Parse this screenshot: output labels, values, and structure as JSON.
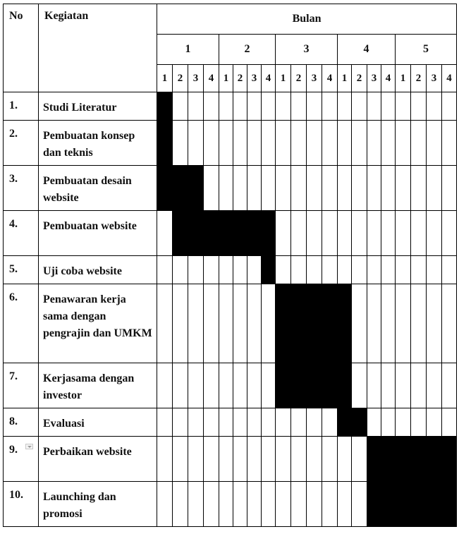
{
  "header": {
    "no_label": "No",
    "activity_label": "Kegiatan",
    "month_group_label": "Bulan",
    "months": [
      "1",
      "2",
      "3",
      "4",
      "5"
    ],
    "weeks": [
      "1",
      "2",
      "3",
      "4"
    ]
  },
  "rows": [
    {
      "no": "1.",
      "activity": "Studi Literatur",
      "weeks_active": [
        1
      ]
    },
    {
      "no": "2.",
      "activity": "Pembuatan konsep dan teknis",
      "weeks_active": [
        1
      ]
    },
    {
      "no": "3.",
      "activity": "Pembuatan desain website",
      "weeks_active": [
        1,
        2,
        3
      ]
    },
    {
      "no": "4.",
      "activity": "Pembuatan website",
      "weeks_active": [
        2,
        3,
        4,
        5,
        6,
        7,
        8
      ]
    },
    {
      "no": "5.",
      "activity": "Uji coba website",
      "weeks_active": [
        8
      ]
    },
    {
      "no": "6.",
      "activity": "Penawaran kerja sama dengan pengrajin dan UMKM",
      "weeks_active": [
        9,
        10,
        11,
        12,
        13
      ]
    },
    {
      "no": "7.",
      "activity": "Kerjasama dengan investor",
      "weeks_active": [
        9,
        10,
        11,
        12,
        13
      ]
    },
    {
      "no": "8.",
      "activity": "Evaluasi",
      "weeks_active": [
        13,
        14
      ]
    },
    {
      "no": "9.",
      "activity": "Perbaikan website",
      "weeks_active": [
        15,
        16,
        17,
        18,
        19,
        20
      ]
    },
    {
      "no": "10.",
      "activity": "Launching dan promosi",
      "weeks_active": [
        15,
        16,
        17,
        18,
        19,
        20
      ]
    }
  ],
  "colors": {
    "bar": "#000000",
    "grid": "#000000",
    "background": "#ffffff"
  }
}
